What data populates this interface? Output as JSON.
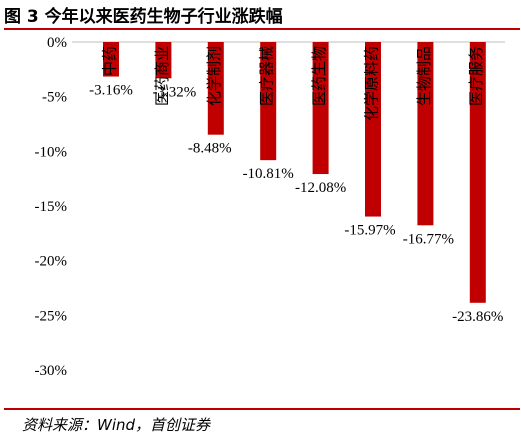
{
  "figure": {
    "title": "图 3 今年以来医药生物子行业涨跌幅",
    "source": "资料来源：Wind，首创证券"
  },
  "colors": {
    "bar": "#c00000",
    "rule": "#c00000",
    "text": "#000000",
    "axis": "#bfbfbf"
  },
  "chart_data": {
    "type": "bar",
    "title": "",
    "xlabel": "",
    "ylabel": "",
    "categories": [
      "中药",
      "医药商业",
      "化学制剂",
      "医疗器械",
      "医药生物",
      "化学原料药",
      "生物制品",
      "医疗服务"
    ],
    "values": [
      -3.16,
      -3.32,
      -8.48,
      -10.81,
      -12.08,
      -15.97,
      -16.77,
      -23.86
    ],
    "value_labels": [
      "-3.16%",
      "-3.32%",
      "-8.48%",
      "-10.81%",
      "-12.08%",
      "-15.97%",
      "-16.77%",
      "-23.86%"
    ],
    "ylim": [
      -30,
      0
    ],
    "yticks": [
      0,
      -5,
      -10,
      -15,
      -20,
      -25,
      -30
    ],
    "ytick_labels": [
      "0%",
      "-5%",
      "-10%",
      "-15%",
      "-20%",
      "-25%",
      "-30%"
    ],
    "grid": false,
    "legend": "none"
  }
}
